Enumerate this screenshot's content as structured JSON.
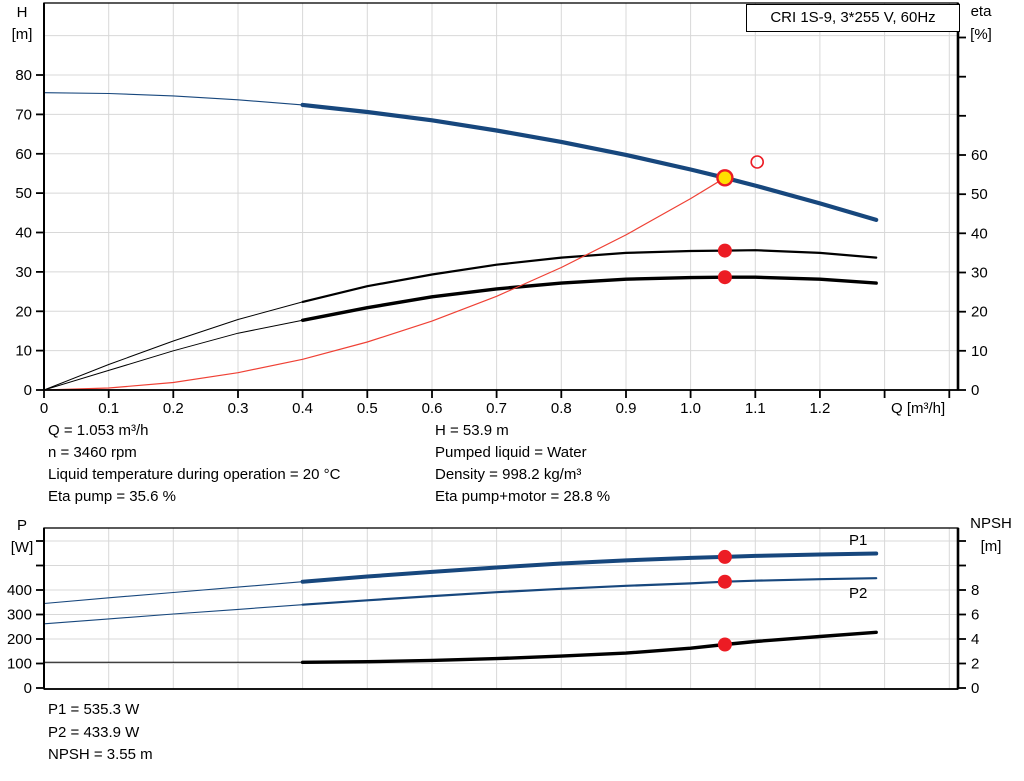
{
  "panel_title": "CRI 1S-9, 3*255 V, 60Hz",
  "colors": {
    "blue": "#17477d",
    "black": "#000000",
    "red": "#ec1c24",
    "red_line": "#ef4135",
    "yellow": "#ffdf00",
    "grid": "#d8d8d8",
    "axis": "#000000"
  },
  "labels": {
    "h": "H",
    "h_unit": "[m]",
    "eta": "eta",
    "eta_unit": "[%]",
    "p": "P",
    "p_unit": "[W]",
    "npsh": "NPSH",
    "npsh_unit": "[m]"
  },
  "info_left": [
    "Q = 1.053 m³/h",
    "n = 3460 rpm",
    "Liquid temperature during operation = 20 °C",
    "Eta pump = 35.6 %"
  ],
  "info_right": [
    "H = 53.9 m",
    "Pumped liquid = Water",
    "Density = 998.2 kg/m³",
    "Eta pump+motor = 28.8 %"
  ],
  "result_lines": [
    "P1 = 535.3 W",
    "P2 = 433.9 W",
    "NPSH = 3.55 m"
  ],
  "chart_data": [
    {
      "id": "qh-eta",
      "type": "line",
      "title": "CRI 1S-9, 3*255 V, 60Hz",
      "xlabel": "Q [m³/h]",
      "xlim": [
        0,
        1.4135
      ],
      "x_ticks": [
        0,
        0.1,
        0.2,
        0.3,
        0.4,
        0.5,
        0.6,
        0.7,
        0.8,
        0.9,
        1.0,
        1.1,
        1.2
      ],
      "x_unlabeled_ticks": [
        1.3,
        1.4
      ],
      "grid_x": [
        0.1,
        0.2,
        0.3,
        0.4,
        0.5,
        0.6,
        0.7,
        0.8,
        0.9,
        1.0,
        1.1,
        1.2,
        1.3,
        1.4
      ],
      "left_axis": {
        "label": "H",
        "unit": "[m]",
        "ticks": [
          0,
          10,
          20,
          30,
          40,
          50,
          60,
          70,
          80
        ],
        "unlabeled_ticks": [],
        "grid": [
          10,
          20,
          30,
          40,
          50,
          60,
          70,
          80,
          90
        ],
        "lim": [
          0,
          98.3
        ]
      },
      "right_axis": {
        "label": "eta",
        "unit": "[%]",
        "ticks": [
          0,
          10,
          20,
          30,
          40,
          50,
          60
        ],
        "unlabeled_ticks": [
          70,
          80,
          90
        ],
        "lim": [
          0,
          99
        ]
      },
      "series": [
        {
          "name": "head-curve",
          "label": "",
          "axis": "left",
          "color_key": "blue",
          "segments": [
            {
              "width": 1.1,
              "points": [
                [
                  0,
                  75.5
                ],
                [
                  0.1,
                  75.3
                ],
                [
                  0.2,
                  74.7
                ],
                [
                  0.3,
                  73.7
                ],
                [
                  0.4,
                  72.4
                ]
              ]
            },
            {
              "width": 4.2,
              "points": [
                [
                  0.4,
                  72.4
                ],
                [
                  0.5,
                  70.6
                ],
                [
                  0.6,
                  68.5
                ],
                [
                  0.7,
                  65.9
                ],
                [
                  0.8,
                  63.0
                ],
                [
                  0.9,
                  59.7
                ],
                [
                  1.0,
                  56.0
                ],
                [
                  1.053,
                  53.9
                ],
                [
                  1.1,
                  51.9
                ],
                [
                  1.2,
                  47.4
                ],
                [
                  1.287,
                  43.2
                ]
              ]
            }
          ]
        },
        {
          "name": "eta-pump-curve",
          "label": "",
          "axis": "right",
          "color_key": "black",
          "segments": [
            {
              "width": 1,
              "points": [
                [
                  0,
                  0
                ],
                [
                  0.1,
                  6.5
                ],
                [
                  0.2,
                  12.5
                ],
                [
                  0.3,
                  18.0
                ],
                [
                  0.4,
                  22.5
                ]
              ]
            },
            {
              "width": 2.2,
              "points": [
                [
                  0.4,
                  22.5
                ],
                [
                  0.5,
                  26.5
                ],
                [
                  0.6,
                  29.5
                ],
                [
                  0.7,
                  32.0
                ],
                [
                  0.8,
                  33.8
                ],
                [
                  0.9,
                  35.0
                ],
                [
                  1.0,
                  35.5
                ],
                [
                  1.053,
                  35.6
                ],
                [
                  1.1,
                  35.7
                ],
                [
                  1.2,
                  35.0
                ],
                [
                  1.287,
                  33.8
                ]
              ]
            }
          ]
        },
        {
          "name": "eta-pump-motor-curve",
          "label": "",
          "axis": "right",
          "color_key": "black",
          "segments": [
            {
              "width": 1,
              "points": [
                [
                  0,
                  0
                ],
                [
                  0.1,
                  5.0
                ],
                [
                  0.2,
                  10.0
                ],
                [
                  0.3,
                  14.5
                ],
                [
                  0.4,
                  17.8
                ]
              ]
            },
            {
              "width": 3.4,
              "points": [
                [
                  0.4,
                  17.8
                ],
                [
                  0.5,
                  21.0
                ],
                [
                  0.6,
                  23.8
                ],
                [
                  0.7,
                  25.8
                ],
                [
                  0.8,
                  27.3
                ],
                [
                  0.9,
                  28.3
                ],
                [
                  1.0,
                  28.7
                ],
                [
                  1.053,
                  28.8
                ],
                [
                  1.1,
                  28.8
                ],
                [
                  1.2,
                  28.3
                ],
                [
                  1.287,
                  27.3
                ]
              ]
            }
          ]
        },
        {
          "name": "system-curve",
          "label": "",
          "axis": "left",
          "color_key": "red_line",
          "segments": [
            {
              "width": 1.2,
              "points": [
                [
                  0,
                  0
                ],
                [
                  0.1,
                  0.5
                ],
                [
                  0.2,
                  1.9
                ],
                [
                  0.3,
                  4.4
                ],
                [
                  0.4,
                  7.8
                ],
                [
                  0.5,
                  12.2
                ],
                [
                  0.6,
                  17.5
                ],
                [
                  0.7,
                  23.8
                ],
                [
                  0.8,
                  31.1
                ],
                [
                  0.9,
                  39.4
                ],
                [
                  1.0,
                  48.6
                ],
                [
                  1.053,
                  53.9
                ]
              ]
            }
          ]
        }
      ],
      "markers": [
        {
          "name": "duty-point",
          "x": 1.053,
          "y": 53.9,
          "axis": "left",
          "style": "duty"
        },
        {
          "name": "rated-duty-point",
          "x": 1.103,
          "y": 57.9,
          "axis": "left",
          "style": "open"
        },
        {
          "name": "eta-pump-point",
          "x": 1.053,
          "y": 35.6,
          "axis": "right",
          "style": "dot"
        },
        {
          "name": "eta-pump-motor-point",
          "x": 1.053,
          "y": 28.8,
          "axis": "right",
          "style": "dot"
        }
      ]
    },
    {
      "id": "power-npsh",
      "type": "line",
      "title": "",
      "xlabel": "",
      "xlim": [
        0,
        1.4135
      ],
      "x_ticks": [],
      "x_unlabeled_ticks": [],
      "grid_x": [
        0.1,
        0.2,
        0.3,
        0.4,
        0.5,
        0.6,
        0.7,
        0.8,
        0.9,
        1.0,
        1.1,
        1.2,
        1.3,
        1.4
      ],
      "left_axis": {
        "label": "P",
        "unit": "[W]",
        "ticks": [
          0,
          100,
          200,
          300,
          400
        ],
        "unlabeled_ticks": [
          500,
          600
        ],
        "grid": [
          100,
          200,
          300,
          400,
          500,
          600
        ],
        "lim": [
          0,
          657
        ]
      },
      "right_axis": {
        "label": "NPSH",
        "unit": "[m]",
        "ticks": [
          0,
          2,
          4,
          6,
          8
        ],
        "unlabeled_ticks": [
          10,
          12
        ],
        "lim": [
          0,
          13.1
        ]
      },
      "series": [
        {
          "name": "p1-curve",
          "label": "P1",
          "axis": "left",
          "color_key": "blue",
          "segments": [
            {
              "width": 1.1,
              "points": [
                [
                  0,
                  345
                ],
                [
                  0.1,
                  368
                ],
                [
                  0.2,
                  390
                ],
                [
                  0.3,
                  412
                ],
                [
                  0.4,
                  434
                ]
              ]
            },
            {
              "width": 4.0,
              "points": [
                [
                  0.4,
                  434
                ],
                [
                  0.5,
                  455
                ],
                [
                  0.6,
                  474
                ],
                [
                  0.7,
                  492
                ],
                [
                  0.8,
                  508
                ],
                [
                  0.9,
                  521
                ],
                [
                  1.0,
                  531
                ],
                [
                  1.053,
                  535.3
                ],
                [
                  1.1,
                  539
                ],
                [
                  1.2,
                  545
                ],
                [
                  1.287,
                  549
                ]
              ]
            }
          ]
        },
        {
          "name": "p2-curve",
          "label": "P2",
          "axis": "left",
          "color_key": "blue",
          "segments": [
            {
              "width": 1.1,
              "points": [
                [
                  0,
                  262
                ],
                [
                  0.1,
                  282
                ],
                [
                  0.2,
                  302
                ],
                [
                  0.3,
                  321
                ],
                [
                  0.4,
                  340
                ]
              ]
            },
            {
              "width": 2.2,
              "points": [
                [
                  0.4,
                  340
                ],
                [
                  0.5,
                  358
                ],
                [
                  0.6,
                  375
                ],
                [
                  0.7,
                  391
                ],
                [
                  0.8,
                  405
                ],
                [
                  0.9,
                  417
                ],
                [
                  1.0,
                  427
                ],
                [
                  1.053,
                  433.9
                ],
                [
                  1.1,
                  438
                ],
                [
                  1.2,
                  444
                ],
                [
                  1.287,
                  448
                ]
              ]
            }
          ]
        },
        {
          "name": "npsh-curve",
          "label": "",
          "axis": "right",
          "color_key": "black",
          "segments": [
            {
              "width": 1,
              "points": [
                [
                  0,
                  2.1
                ],
                [
                  0.1,
                  2.1
                ],
                [
                  0.2,
                  2.1
                ],
                [
                  0.3,
                  2.1
                ],
                [
                  0.4,
                  2.1
                ]
              ]
            },
            {
              "width": 3.4,
              "points": [
                [
                  0.4,
                  2.1
                ],
                [
                  0.5,
                  2.15
                ],
                [
                  0.6,
                  2.25
                ],
                [
                  0.7,
                  2.4
                ],
                [
                  0.8,
                  2.6
                ],
                [
                  0.9,
                  2.85
                ],
                [
                  1.0,
                  3.25
                ],
                [
                  1.053,
                  3.55
                ],
                [
                  1.1,
                  3.8
                ],
                [
                  1.2,
                  4.2
                ],
                [
                  1.287,
                  4.55
                ]
              ]
            }
          ]
        }
      ],
      "markers": [
        {
          "name": "p1-point",
          "x": 1.053,
          "y": 535.3,
          "axis": "left",
          "style": "dot"
        },
        {
          "name": "p2-point",
          "x": 1.053,
          "y": 433.9,
          "axis": "left",
          "style": "dot"
        },
        {
          "name": "npsh-point",
          "x": 1.053,
          "y": 3.55,
          "axis": "right",
          "style": "dot"
        }
      ]
    }
  ]
}
